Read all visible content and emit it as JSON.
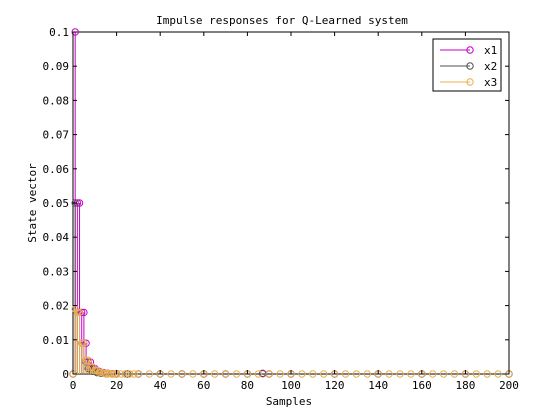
{
  "chart_data": {
    "type": "stem",
    "title": "Impulse responses for Q-Learned system",
    "xlabel": "Samples",
    "ylabel": "State vector",
    "xlim": [
      0,
      200
    ],
    "ylim": [
      0,
      0.1
    ],
    "xticks": [
      "0",
      "20",
      "40",
      "60",
      "80",
      "100",
      "120",
      "140",
      "160",
      "180",
      "200"
    ],
    "yticks": [
      "0",
      "0.01",
      "0.02",
      "0.03",
      "0.04",
      "0.05",
      "0.06",
      "0.07",
      "0.08",
      "0.09",
      "0.1"
    ],
    "grid": false,
    "legend_position": "top-right",
    "marker": "circle",
    "series": [
      {
        "name": "x1",
        "color": "#c800c8",
        "x": [
          0,
          1,
          2,
          3,
          4,
          5,
          6,
          7,
          8,
          9,
          10,
          11,
          12,
          13,
          14,
          15,
          16,
          18,
          20,
          25,
          30,
          40,
          50,
          60,
          70,
          80,
          87,
          90,
          100,
          120,
          140,
          160,
          180,
          200
        ],
        "y": [
          0,
          0.1,
          0.05,
          0.05,
          0.018,
          0.018,
          0.009,
          0.0035,
          0.0035,
          0.0016,
          0.0016,
          0.0008,
          0.0008,
          0.0004,
          0.0004,
          0.0002,
          0.0002,
          0.0001,
          0.0001,
          0,
          0,
          0,
          0,
          0,
          0,
          0,
          0.0002,
          0,
          0,
          0,
          0,
          0,
          0,
          0
        ]
      },
      {
        "name": "x2",
        "color": "#505050",
        "x": [
          0,
          1,
          2,
          3,
          4,
          5,
          6,
          7,
          8,
          9,
          10,
          11,
          12,
          13,
          14,
          15,
          16,
          18,
          20,
          25,
          30,
          40,
          50,
          60,
          70,
          80,
          87,
          90,
          100,
          120,
          140,
          160,
          180,
          200
        ],
        "y": [
          0,
          0.05,
          0.018,
          0.018,
          0.009,
          0.009,
          0.0035,
          0.0016,
          0.0016,
          0.0008,
          0.0008,
          0.0004,
          0.0004,
          0.0002,
          0.0002,
          0.0001,
          0.0001,
          0,
          0,
          0,
          0,
          0,
          0,
          0,
          0,
          0,
          0.0001,
          0,
          0,
          0,
          0,
          0,
          0,
          0
        ]
      },
      {
        "name": "x3",
        "color": "#e8b050",
        "x": [
          0,
          1,
          2,
          3,
          4,
          5,
          6,
          7,
          8,
          9,
          10,
          11,
          12,
          13,
          14,
          15,
          16,
          17,
          18,
          19,
          20,
          22,
          24,
          26,
          28,
          30,
          35,
          40,
          45,
          50,
          55,
          60,
          65,
          70,
          75,
          80,
          85,
          90,
          95,
          100,
          105,
          110,
          115,
          120,
          125,
          130,
          135,
          140,
          145,
          150,
          155,
          160,
          165,
          170,
          175,
          180,
          185,
          190,
          195,
          200
        ],
        "y": [
          0,
          0.019,
          0.018,
          0.018,
          0.009,
          0.009,
          0.004,
          0.004,
          0.002,
          0.002,
          0.001,
          0.001,
          0.0005,
          0.0005,
          0.0002,
          0.0002,
          0.0001,
          0.0001,
          0,
          0,
          0,
          0,
          0,
          0,
          0,
          0,
          0,
          0,
          0,
          0,
          0,
          0,
          0,
          0,
          0,
          0,
          0,
          0,
          0,
          0,
          0,
          0,
          0,
          0,
          0,
          0,
          0,
          0,
          0,
          0,
          0,
          0,
          0,
          0,
          0,
          0,
          0,
          0,
          0,
          0
        ]
      }
    ]
  }
}
